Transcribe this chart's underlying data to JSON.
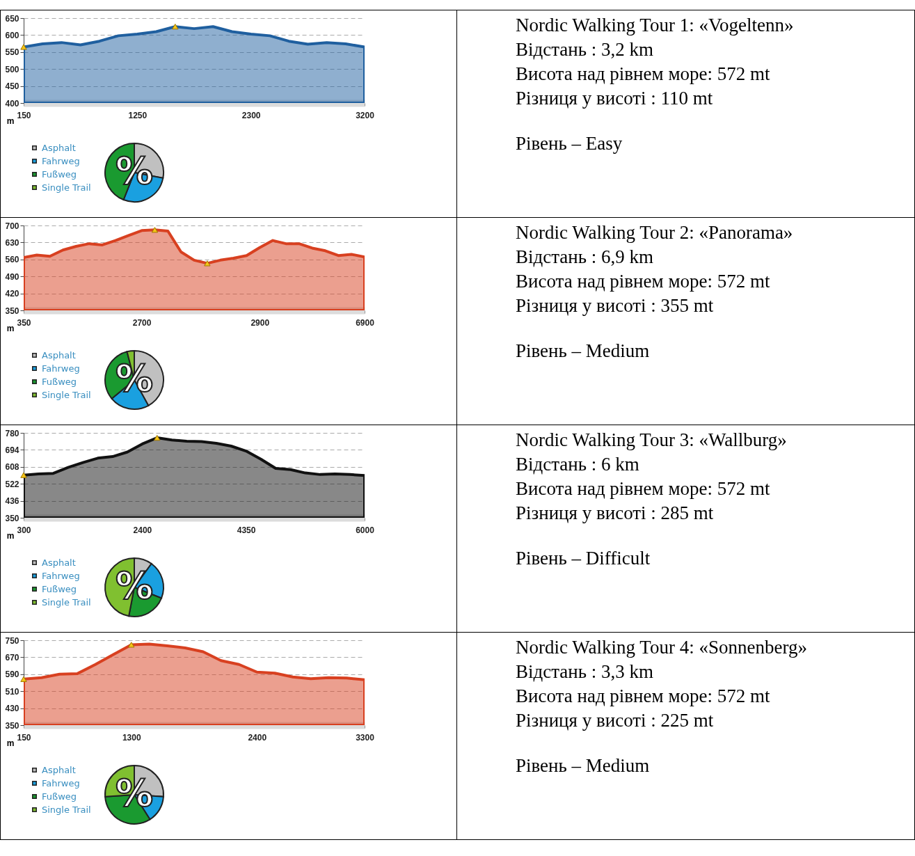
{
  "chart_data": [
    {
      "type": "area",
      "xlabel": "m",
      "categories": [
        "150",
        null,
        null,
        null,
        null,
        null,
        "1250",
        null,
        null,
        null,
        null,
        null,
        "2300",
        null,
        null,
        null,
        null,
        null,
        "3200"
      ],
      "ylim": [
        400,
        650
      ],
      "yticks": [
        400,
        450,
        500,
        550,
        600,
        650
      ],
      "grid": "y",
      "series": [
        {
          "type": "area",
          "color": "#1f5f9f",
          "values": [
            565,
            574,
            578,
            571,
            582,
            598,
            603,
            610,
            625,
            619,
            625,
            610,
            603,
            598,
            582,
            573,
            578,
            574,
            565
          ]
        },
        {
          "type": "scatter",
          "marker": "triangle",
          "color": "#f5c518",
          "values": [
            565,
            null,
            null,
            null,
            null,
            null,
            null,
            null,
            625,
            null,
            null,
            null,
            null,
            null,
            null,
            null,
            null,
            null,
            null
          ]
        }
      ]
    },
    {
      "type": "pie",
      "categories": [
        "Asphalt",
        "Fahrweg",
        "Fußweg",
        "Single Trail"
      ],
      "values": [
        28,
        28,
        44,
        0
      ],
      "colors": [
        "#c0c0c0",
        "#1aa0e0",
        "#1a9a30",
        "#80c030"
      ],
      "legend": "left",
      "annotations": [
        "%"
      ]
    },
    {
      "type": "other",
      "annotations": [
        "Nordic Walking Tour 1: «Vogeltenn»",
        "Відстань : 3,2 km",
        "Висота над рівнем море: 572 mt",
        "Різниця у висоті : 110 mt",
        "Рівень – Easy"
      ]
    },
    {
      "type": "area",
      "xlabel": "m",
      "categories": [
        "350",
        null,
        null,
        null,
        null,
        null,
        null,
        null,
        null,
        "2700",
        null,
        null,
        null,
        null,
        null,
        null,
        null,
        null,
        "2900",
        null,
        null,
        null,
        null,
        null,
        null,
        null,
        "6900"
      ],
      "ylim": [
        350,
        700
      ],
      "yticks": [
        350,
        420,
        490,
        560,
        630,
        700
      ],
      "grid": "y",
      "series": [
        {
          "type": "area",
          "color": "#d84020",
          "values": [
            568,
            578,
            573,
            599,
            614,
            625,
            620,
            638,
            659,
            679,
            682,
            677,
            591,
            557,
            544,
            557,
            565,
            576,
            609,
            638,
            625,
            625,
            607,
            596,
            576,
            581,
            570
          ]
        },
        {
          "type": "scatter",
          "marker": "triangle",
          "color": "#f5c518",
          "values": [
            null,
            null,
            null,
            null,
            null,
            null,
            null,
            null,
            null,
            null,
            682,
            null,
            null,
            null,
            544,
            null,
            null,
            null,
            null,
            null,
            null,
            null,
            null,
            null,
            null,
            null,
            null
          ]
        }
      ]
    },
    {
      "type": "pie",
      "categories": [
        "Asphalt",
        "Fahrweg",
        "Fußweg",
        "Single Trail"
      ],
      "values": [
        42,
        22,
        32,
        4
      ],
      "colors": [
        "#c0c0c0",
        "#1aa0e0",
        "#1a9a30",
        "#80c030"
      ],
      "legend": "left",
      "annotations": [
        "%"
      ]
    },
    {
      "type": "other",
      "annotations": [
        "Nordic Walking Tour 2: «Panorama»",
        "Відстань : 6,9 km",
        "Висота над рівнем море: 572 mt",
        "Різниця у висоті :  355 mt",
        "Рівень – Medium"
      ]
    },
    {
      "type": "area",
      "xlabel": "m",
      "categories": [
        "300",
        null,
        null,
        null,
        null,
        null,
        null,
        null,
        "2400",
        null,
        null,
        null,
        null,
        null,
        null,
        "4350",
        null,
        null,
        null,
        null,
        null,
        null,
        null,
        "6000"
      ],
      "ylim": [
        350,
        780
      ],
      "yticks": [
        350,
        436,
        522,
        608,
        694,
        780
      ],
      "grid": "y",
      "series": [
        {
          "type": "area",
          "color": "#111111",
          "values": [
            566,
            572,
            575,
            605,
            630,
            652,
            660,
            683,
            724,
            755,
            744,
            738,
            736,
            727,
            713,
            688,
            647,
            600,
            594,
            577,
            569,
            572,
            569,
            564
          ]
        },
        {
          "type": "scatter",
          "marker": "triangle",
          "color": "#f5c518",
          "values": [
            566,
            null,
            null,
            null,
            null,
            null,
            null,
            null,
            null,
            755,
            null,
            null,
            null,
            null,
            null,
            null,
            null,
            null,
            null,
            null,
            null,
            null,
            null,
            null
          ]
        }
      ]
    },
    {
      "type": "pie",
      "categories": [
        "Asphalt",
        "Fahrweg",
        "Fußweg",
        "Single Trail"
      ],
      "values": [
        10,
        21,
        22,
        47
      ],
      "colors": [
        "#c0c0c0",
        "#1aa0e0",
        "#1a9a30",
        "#80c030"
      ],
      "legend": "left",
      "annotations": [
        "%"
      ]
    },
    {
      "type": "other",
      "annotations": [
        "Nordic Walking Tour 3: «Wallburg»",
        "Відстань : 6 km",
        "Висота над рівнем море: 572 mt",
        "Різниця у висоті :  285 mt",
        "Рівень – Difficult"
      ]
    },
    {
      "type": "area",
      "xlabel": "m",
      "categories": [
        "150",
        null,
        null,
        null,
        null,
        null,
        "1300",
        null,
        null,
        null,
        null,
        null,
        null,
        "2400",
        null,
        null,
        null,
        null,
        null,
        "3300"
      ],
      "ylim": [
        350,
        750
      ],
      "yticks": [
        350,
        430,
        510,
        590,
        670,
        750
      ],
      "grid": "y",
      "series": [
        {
          "type": "area",
          "color": "#d84020",
          "values": [
            567,
            574,
            590,
            593,
            636,
            683,
            729,
            732,
            724,
            714,
            696,
            654,
            636,
            600,
            595,
            577,
            569,
            574,
            572,
            564
          ]
        },
        {
          "type": "scatter",
          "marker": "triangle",
          "color": "#f5c518",
          "values": [
            567,
            null,
            null,
            null,
            null,
            null,
            729,
            null,
            null,
            null,
            null,
            null,
            null,
            null,
            null,
            null,
            null,
            null,
            null,
            null
          ]
        }
      ]
    },
    {
      "type": "pie",
      "categories": [
        "Asphalt",
        "Fahrweg",
        "Fußweg",
        "Single Trail"
      ],
      "values": [
        26,
        15,
        33,
        26
      ],
      "colors": [
        "#c0c0c0",
        "#1aa0e0",
        "#1a9a30",
        "#80c030"
      ],
      "legend": "left",
      "annotations": [
        "%"
      ]
    },
    {
      "type": "other",
      "annotations": [
        "Nordic Walking Tour 4: «Sonnenberg»",
        "Відстань : 3,3 km",
        "Висота над рівнем море: 572 mt",
        "Різниця у висоті :  225 mt",
        "Рівень – Medium"
      ]
    }
  ]
}
